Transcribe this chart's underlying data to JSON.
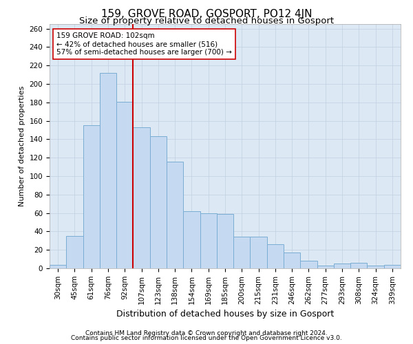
{
  "title": "159, GROVE ROAD, GOSPORT, PO12 4JN",
  "subtitle": "Size of property relative to detached houses in Gosport",
  "xlabel": "Distribution of detached houses by size in Gosport",
  "ylabel": "Number of detached properties",
  "categories": [
    "30sqm",
    "45sqm",
    "61sqm",
    "76sqm",
    "92sqm",
    "107sqm",
    "123sqm",
    "138sqm",
    "154sqm",
    "169sqm",
    "185sqm",
    "200sqm",
    "215sqm",
    "231sqm",
    "246sqm",
    "262sqm",
    "277sqm",
    "293sqm",
    "308sqm",
    "324sqm",
    "339sqm"
  ],
  "values": [
    4,
    35,
    155,
    212,
    181,
    153,
    143,
    116,
    62,
    60,
    59,
    34,
    34,
    26,
    17,
    8,
    3,
    5,
    6,
    3,
    4
  ],
  "bar_color": "#c5d9f0",
  "bar_edge_color": "#7aadd4",
  "vline_color": "#cc0000",
  "annotation_line1": "159 GROVE ROAD: 102sqm",
  "annotation_line2": "← 42% of detached houses are smaller (516)",
  "annotation_line3": "57% of semi-detached houses are larger (700) →",
  "annotation_box_color": "#ffffff",
  "annotation_box_edge": "#cc0000",
  "footnote1": "Contains HM Land Registry data © Crown copyright and database right 2024.",
  "footnote2": "Contains public sector information licensed under the Open Government Licence v3.0.",
  "bg_color": "#ffffff",
  "axes_bg_color": "#dce9f5",
  "grid_color": "#c0cfe0",
  "ylim": [
    0,
    265
  ],
  "yticks": [
    0,
    20,
    40,
    60,
    80,
    100,
    120,
    140,
    160,
    180,
    200,
    220,
    240,
    260
  ],
  "title_fontsize": 11,
  "subtitle_fontsize": 9.5,
  "xlabel_fontsize": 9,
  "ylabel_fontsize": 8,
  "tick_fontsize": 7.5,
  "annot_fontsize": 7.5,
  "footnote_fontsize": 6.5
}
